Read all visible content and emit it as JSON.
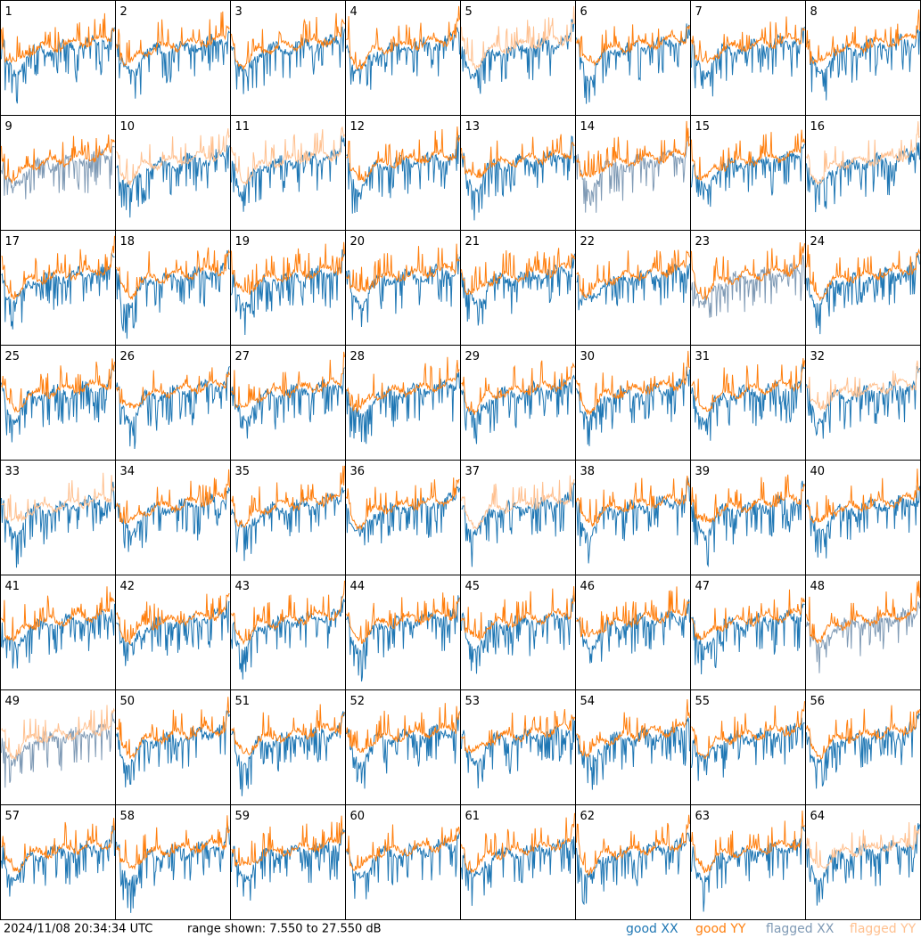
{
  "chart_data": {
    "type": "spectra-grid",
    "columns": 8,
    "panels": [
      {
        "label": "1",
        "xx": "good",
        "yy": "good"
      },
      {
        "label": "2",
        "xx": "good",
        "yy": "good"
      },
      {
        "label": "3",
        "xx": "good",
        "yy": "good"
      },
      {
        "label": "4",
        "xx": "good",
        "yy": "good"
      },
      {
        "label": "5",
        "xx": "good",
        "yy": "flagged"
      },
      {
        "label": "6",
        "xx": "good",
        "yy": "good"
      },
      {
        "label": "7",
        "xx": "good",
        "yy": "good"
      },
      {
        "label": "8",
        "xx": "good",
        "yy": "good"
      },
      {
        "label": "9",
        "xx": "flagged",
        "yy": "good"
      },
      {
        "label": "10",
        "xx": "good",
        "yy": "flagged"
      },
      {
        "label": "11",
        "xx": "good",
        "yy": "flagged"
      },
      {
        "label": "12",
        "xx": "good",
        "yy": "good"
      },
      {
        "label": "13",
        "xx": "good",
        "yy": "good"
      },
      {
        "label": "14",
        "xx": "flagged",
        "yy": "good"
      },
      {
        "label": "15",
        "xx": "good",
        "yy": "good"
      },
      {
        "label": "16",
        "xx": "good",
        "yy": "flagged"
      },
      {
        "label": "17",
        "xx": "good",
        "yy": "good"
      },
      {
        "label": "18",
        "xx": "good",
        "yy": "good"
      },
      {
        "label": "19",
        "xx": "good",
        "yy": "good"
      },
      {
        "label": "20",
        "xx": "good",
        "yy": "good"
      },
      {
        "label": "21",
        "xx": "good",
        "yy": "good"
      },
      {
        "label": "22",
        "xx": "good",
        "yy": "good"
      },
      {
        "label": "23",
        "xx": "flagged",
        "yy": "good"
      },
      {
        "label": "24",
        "xx": "good",
        "yy": "good"
      },
      {
        "label": "25",
        "xx": "good",
        "yy": "good"
      },
      {
        "label": "26",
        "xx": "good",
        "yy": "good"
      },
      {
        "label": "27",
        "xx": "good",
        "yy": "good"
      },
      {
        "label": "28",
        "xx": "good",
        "yy": "good"
      },
      {
        "label": "29",
        "xx": "good",
        "yy": "good"
      },
      {
        "label": "30",
        "xx": "good",
        "yy": "good"
      },
      {
        "label": "31",
        "xx": "good",
        "yy": "good"
      },
      {
        "label": "32",
        "xx": "good",
        "yy": "flagged"
      },
      {
        "label": "33",
        "xx": "good",
        "yy": "flagged"
      },
      {
        "label": "34",
        "xx": "good",
        "yy": "good"
      },
      {
        "label": "35",
        "xx": "good",
        "yy": "good"
      },
      {
        "label": "36",
        "xx": "good",
        "yy": "good"
      },
      {
        "label": "37",
        "xx": "good",
        "yy": "flagged"
      },
      {
        "label": "38",
        "xx": "good",
        "yy": "good"
      },
      {
        "label": "39",
        "xx": "good",
        "yy": "good"
      },
      {
        "label": "40",
        "xx": "good",
        "yy": "good"
      },
      {
        "label": "41",
        "xx": "good",
        "yy": "good"
      },
      {
        "label": "42",
        "xx": "good",
        "yy": "good"
      },
      {
        "label": "43",
        "xx": "good",
        "yy": "good"
      },
      {
        "label": "44",
        "xx": "good",
        "yy": "good"
      },
      {
        "label": "45",
        "xx": "good",
        "yy": "good"
      },
      {
        "label": "46",
        "xx": "good",
        "yy": "good"
      },
      {
        "label": "47",
        "xx": "good",
        "yy": "good"
      },
      {
        "label": "48",
        "xx": "flagged",
        "yy": "good"
      },
      {
        "label": "49",
        "xx": "flagged",
        "yy": "flagged"
      },
      {
        "label": "50",
        "xx": "good",
        "yy": "good"
      },
      {
        "label": "51",
        "xx": "good",
        "yy": "good"
      },
      {
        "label": "52",
        "xx": "good",
        "yy": "good"
      },
      {
        "label": "53",
        "xx": "good",
        "yy": "good"
      },
      {
        "label": "54",
        "xx": "good",
        "yy": "good"
      },
      {
        "label": "55",
        "xx": "good",
        "yy": "good"
      },
      {
        "label": "56",
        "xx": "good",
        "yy": "good"
      },
      {
        "label": "57",
        "xx": "good",
        "yy": "good"
      },
      {
        "label": "58",
        "xx": "good",
        "yy": "good"
      },
      {
        "label": "59",
        "xx": "good",
        "yy": "good"
      },
      {
        "label": "60",
        "xx": "good",
        "yy": "good"
      },
      {
        "label": "61",
        "xx": "good",
        "yy": "good"
      },
      {
        "label": "62",
        "xx": "good",
        "yy": "good"
      },
      {
        "label": "63",
        "xx": "good",
        "yy": "good"
      },
      {
        "label": "64",
        "xx": "good",
        "yy": "flagged"
      }
    ],
    "timestamp": "2024/11/08 20:34:34 UTC",
    "range_text": "range shown: 7.550 to 27.550 dB",
    "legend": [
      {
        "name": "good XX",
        "color": "#1f77b4"
      },
      {
        "name": "good YY",
        "color": "#ff7f0e"
      },
      {
        "name": "flagged XX",
        "color": "#7f9ab5"
      },
      {
        "name": "flagged YY",
        "color": "#ffc08f"
      }
    ]
  }
}
